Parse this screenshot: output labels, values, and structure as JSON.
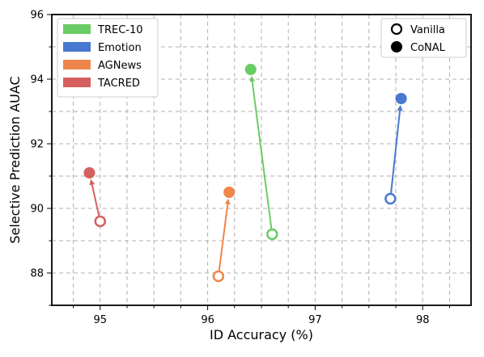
{
  "chart_data": {
    "type": "scatter",
    "title": "",
    "xlabel": "ID Accuracy (%)",
    "ylabel": "Selective Prediction AUAC",
    "xlim": [
      94.55,
      98.45
    ],
    "ylim": [
      87.0,
      96.0
    ],
    "x_ticks": [
      95,
      96,
      97,
      98
    ],
    "x_tick_labels": [
      "95",
      "96",
      "97",
      "98"
    ],
    "x_minor_ticks": [
      94.75,
      95.25,
      95.5,
      95.75,
      96.25,
      96.5,
      96.75,
      97.25,
      97.5,
      97.75,
      98.25
    ],
    "y_ticks": [
      88,
      90,
      92,
      94,
      96
    ],
    "y_tick_labels": [
      "88",
      "90",
      "92",
      "94",
      "96"
    ],
    "y_minor_ticks": [
      87,
      89,
      91,
      93,
      95
    ],
    "grid": true,
    "series": [
      {
        "name": "TREC-10",
        "color": "#6acc64",
        "vanilla": {
          "x": 96.6,
          "y": 89.2
        },
        "conal": {
          "x": 96.4,
          "y": 94.3
        }
      },
      {
        "name": "Emotion",
        "color": "#4878d0",
        "vanilla": {
          "x": 97.7,
          "y": 90.3
        },
        "conal": {
          "x": 97.8,
          "y": 93.4
        }
      },
      {
        "name": "AGNews",
        "color": "#ee854a",
        "vanilla": {
          "x": 96.1,
          "y": 87.9
        },
        "conal": {
          "x": 96.2,
          "y": 90.5
        }
      },
      {
        "name": "TACRED",
        "color": "#d65f5f",
        "vanilla": {
          "x": 95.0,
          "y": 89.6
        },
        "conal": {
          "x": 94.9,
          "y": 91.1
        }
      }
    ],
    "marker_legend": [
      {
        "label": "Vanilla",
        "style": "hollow"
      },
      {
        "label": "CoNAL",
        "style": "filled"
      }
    ],
    "legend_placement": {
      "datasets": "top-left",
      "markers": "top-right"
    }
  }
}
